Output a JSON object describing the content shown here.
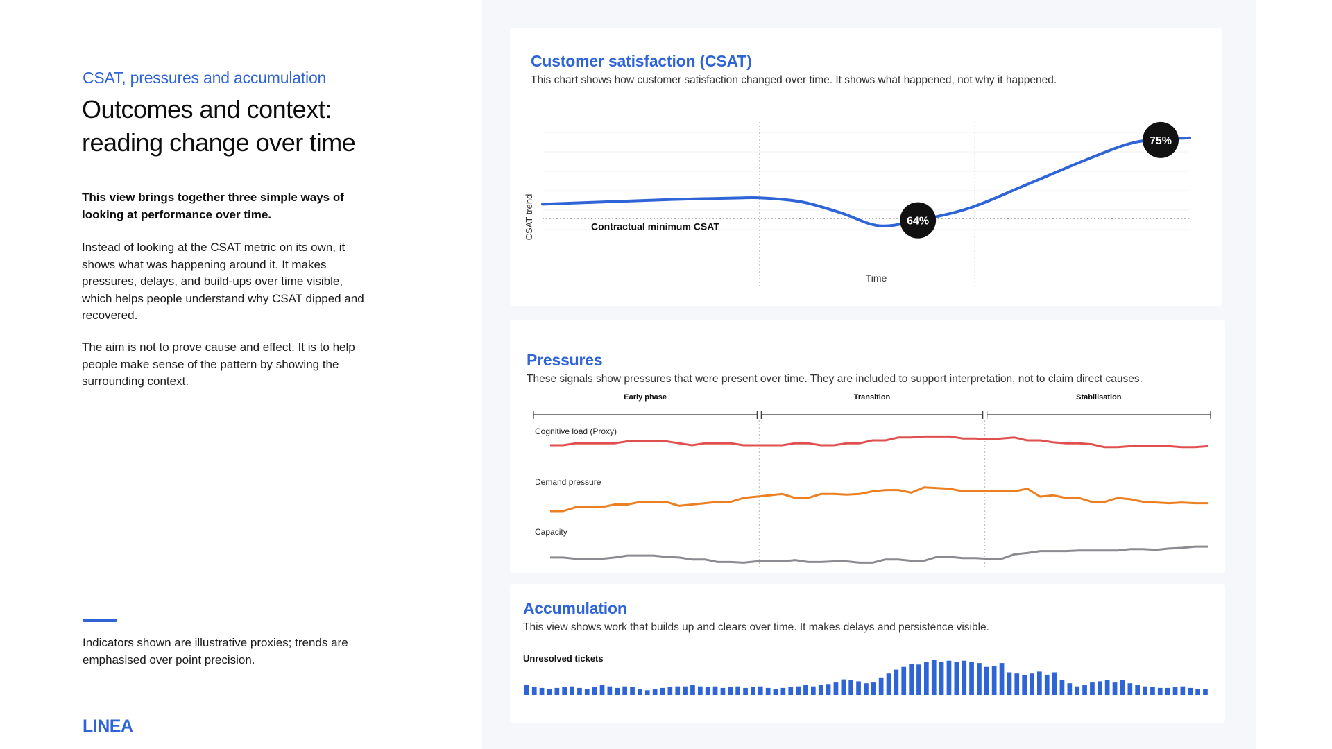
{
  "intro": {
    "eyebrow": "CSAT, pressures and accumulation",
    "headline_line1": "Outcomes and context:",
    "headline_line2": "reading change over time",
    "lead": "This view brings together three simple ways of looking at performance over time.",
    "para1": "Instead of looking at the CSAT metric on its own, it shows what was happening around it. It makes pressures, delays, and build-ups over time visible, which helps people understand why CSAT dipped and recovered.",
    "para2": "The aim is not to prove cause and effect. It is to help people make sense of the pattern by showing the surrounding context.",
    "note": "Indicators shown are illustrative proxies; trends are emphasised over point precision.",
    "logo": "LINEA"
  },
  "colors": {
    "accent": "#2f64d6",
    "line_red": "#e0504f",
    "line_orange": "#ec7f21",
    "line_gray": "#8a8a90",
    "badge": "#111111"
  },
  "chart_data": [
    {
      "type": "line",
      "title": "Customer satisfaction (CSAT)",
      "subtitle": "This chart shows how customer satisfaction changed over time. It shows what happened, not why it happened.",
      "xlabel": "Time",
      "ylabel": "CSAT trend",
      "threshold": {
        "label": "Contractual minimum CSAT",
        "value": 0.65
      },
      "x": [
        0,
        0.1,
        0.2,
        0.3,
        0.34,
        0.4,
        0.46,
        0.52,
        0.58,
        0.66,
        0.75,
        0.85,
        0.92,
        1.0
      ],
      "values": [
        0.669,
        0.672,
        0.675,
        0.677,
        0.677,
        0.672,
        0.658,
        0.641,
        0.648,
        0.664,
        0.695,
        0.73,
        0.75,
        0.755
      ],
      "ylim": [
        0.6,
        0.78
      ],
      "annotations": [
        {
          "label": "64%",
          "x": 0.58
        },
        {
          "label": "75%",
          "x": 0.955
        }
      ],
      "dividers": [
        0.335,
        0.668
      ]
    },
    {
      "type": "line",
      "title": "Pressures",
      "subtitle": "These signals show pressures that were present over time. They are included to support interpretation, not to claim direct causes.",
      "phases": [
        "Early phase",
        "Transition",
        "Stabilisation"
      ],
      "ylim": [
        0,
        1
      ],
      "series": [
        {
          "name": "Cognitive load (Proxy)",
          "values": [
            0.7,
            0.7,
            0.74,
            0.74,
            0.74,
            0.74,
            0.78,
            0.78,
            0.78,
            0.78,
            0.74,
            0.7,
            0.74,
            0.74,
            0.74,
            0.7,
            0.7,
            0.7,
            0.7,
            0.74,
            0.74,
            0.7,
            0.7,
            0.74,
            0.74,
            0.8,
            0.8,
            0.86,
            0.86,
            0.88,
            0.88,
            0.88,
            0.84,
            0.84,
            0.82,
            0.84,
            0.86,
            0.8,
            0.8,
            0.76,
            0.74,
            0.74,
            0.72,
            0.66,
            0.66,
            0.68,
            0.68,
            0.68,
            0.68,
            0.66,
            0.66,
            0.68
          ]
        },
        {
          "name": "Demand pressure",
          "values": [
            0.2,
            0.2,
            0.26,
            0.26,
            0.26,
            0.3,
            0.3,
            0.34,
            0.34,
            0.34,
            0.28,
            0.3,
            0.32,
            0.34,
            0.34,
            0.4,
            0.42,
            0.44,
            0.46,
            0.4,
            0.4,
            0.46,
            0.46,
            0.45,
            0.46,
            0.5,
            0.52,
            0.52,
            0.48,
            0.56,
            0.55,
            0.54,
            0.5,
            0.5,
            0.5,
            0.5,
            0.5,
            0.54,
            0.42,
            0.44,
            0.4,
            0.4,
            0.34,
            0.34,
            0.4,
            0.38,
            0.34,
            0.33,
            0.32,
            0.33,
            0.32,
            0.32
          ]
        },
        {
          "name": "Capacity",
          "values": [
            0.13,
            0.13,
            0.11,
            0.11,
            0.11,
            0.13,
            0.16,
            0.16,
            0.16,
            0.14,
            0.13,
            0.1,
            0.1,
            0.06,
            0.06,
            0.05,
            0.07,
            0.07,
            0.07,
            0.09,
            0.06,
            0.06,
            0.07,
            0.07,
            0.05,
            0.05,
            0.1,
            0.1,
            0.08,
            0.08,
            0.14,
            0.14,
            0.12,
            0.12,
            0.11,
            0.11,
            0.18,
            0.2,
            0.23,
            0.23,
            0.23,
            0.24,
            0.24,
            0.24,
            0.24,
            0.26,
            0.26,
            0.25,
            0.27,
            0.28,
            0.3,
            0.3
          ]
        }
      ]
    },
    {
      "type": "bar",
      "title": "Accumulation",
      "subtitle": "This view shows work that builds up and clears over time. It makes delays and persistence visible.",
      "series_label": "Unresolved tickets",
      "ylim": [
        0,
        1
      ],
      "values": [
        0.25,
        0.2,
        0.18,
        0.15,
        0.18,
        0.2,
        0.22,
        0.18,
        0.15,
        0.2,
        0.25,
        0.22,
        0.18,
        0.22,
        0.2,
        0.15,
        0.12,
        0.15,
        0.18,
        0.2,
        0.22,
        0.22,
        0.25,
        0.22,
        0.2,
        0.22,
        0.18,
        0.2,
        0.22,
        0.18,
        0.2,
        0.22,
        0.18,
        0.15,
        0.18,
        0.2,
        0.22,
        0.25,
        0.22,
        0.25,
        0.28,
        0.32,
        0.4,
        0.38,
        0.35,
        0.3,
        0.32,
        0.45,
        0.55,
        0.65,
        0.72,
        0.8,
        0.78,
        0.85,
        0.9,
        0.85,
        0.88,
        0.85,
        0.88,
        0.85,
        0.82,
        0.72,
        0.75,
        0.82,
        0.58,
        0.55,
        0.5,
        0.55,
        0.6,
        0.52,
        0.58,
        0.38,
        0.3,
        0.22,
        0.25,
        0.32,
        0.35,
        0.38,
        0.32,
        0.38,
        0.3,
        0.25,
        0.22,
        0.2,
        0.18,
        0.18,
        0.2,
        0.22,
        0.18,
        0.15,
        0.15
      ]
    }
  ]
}
